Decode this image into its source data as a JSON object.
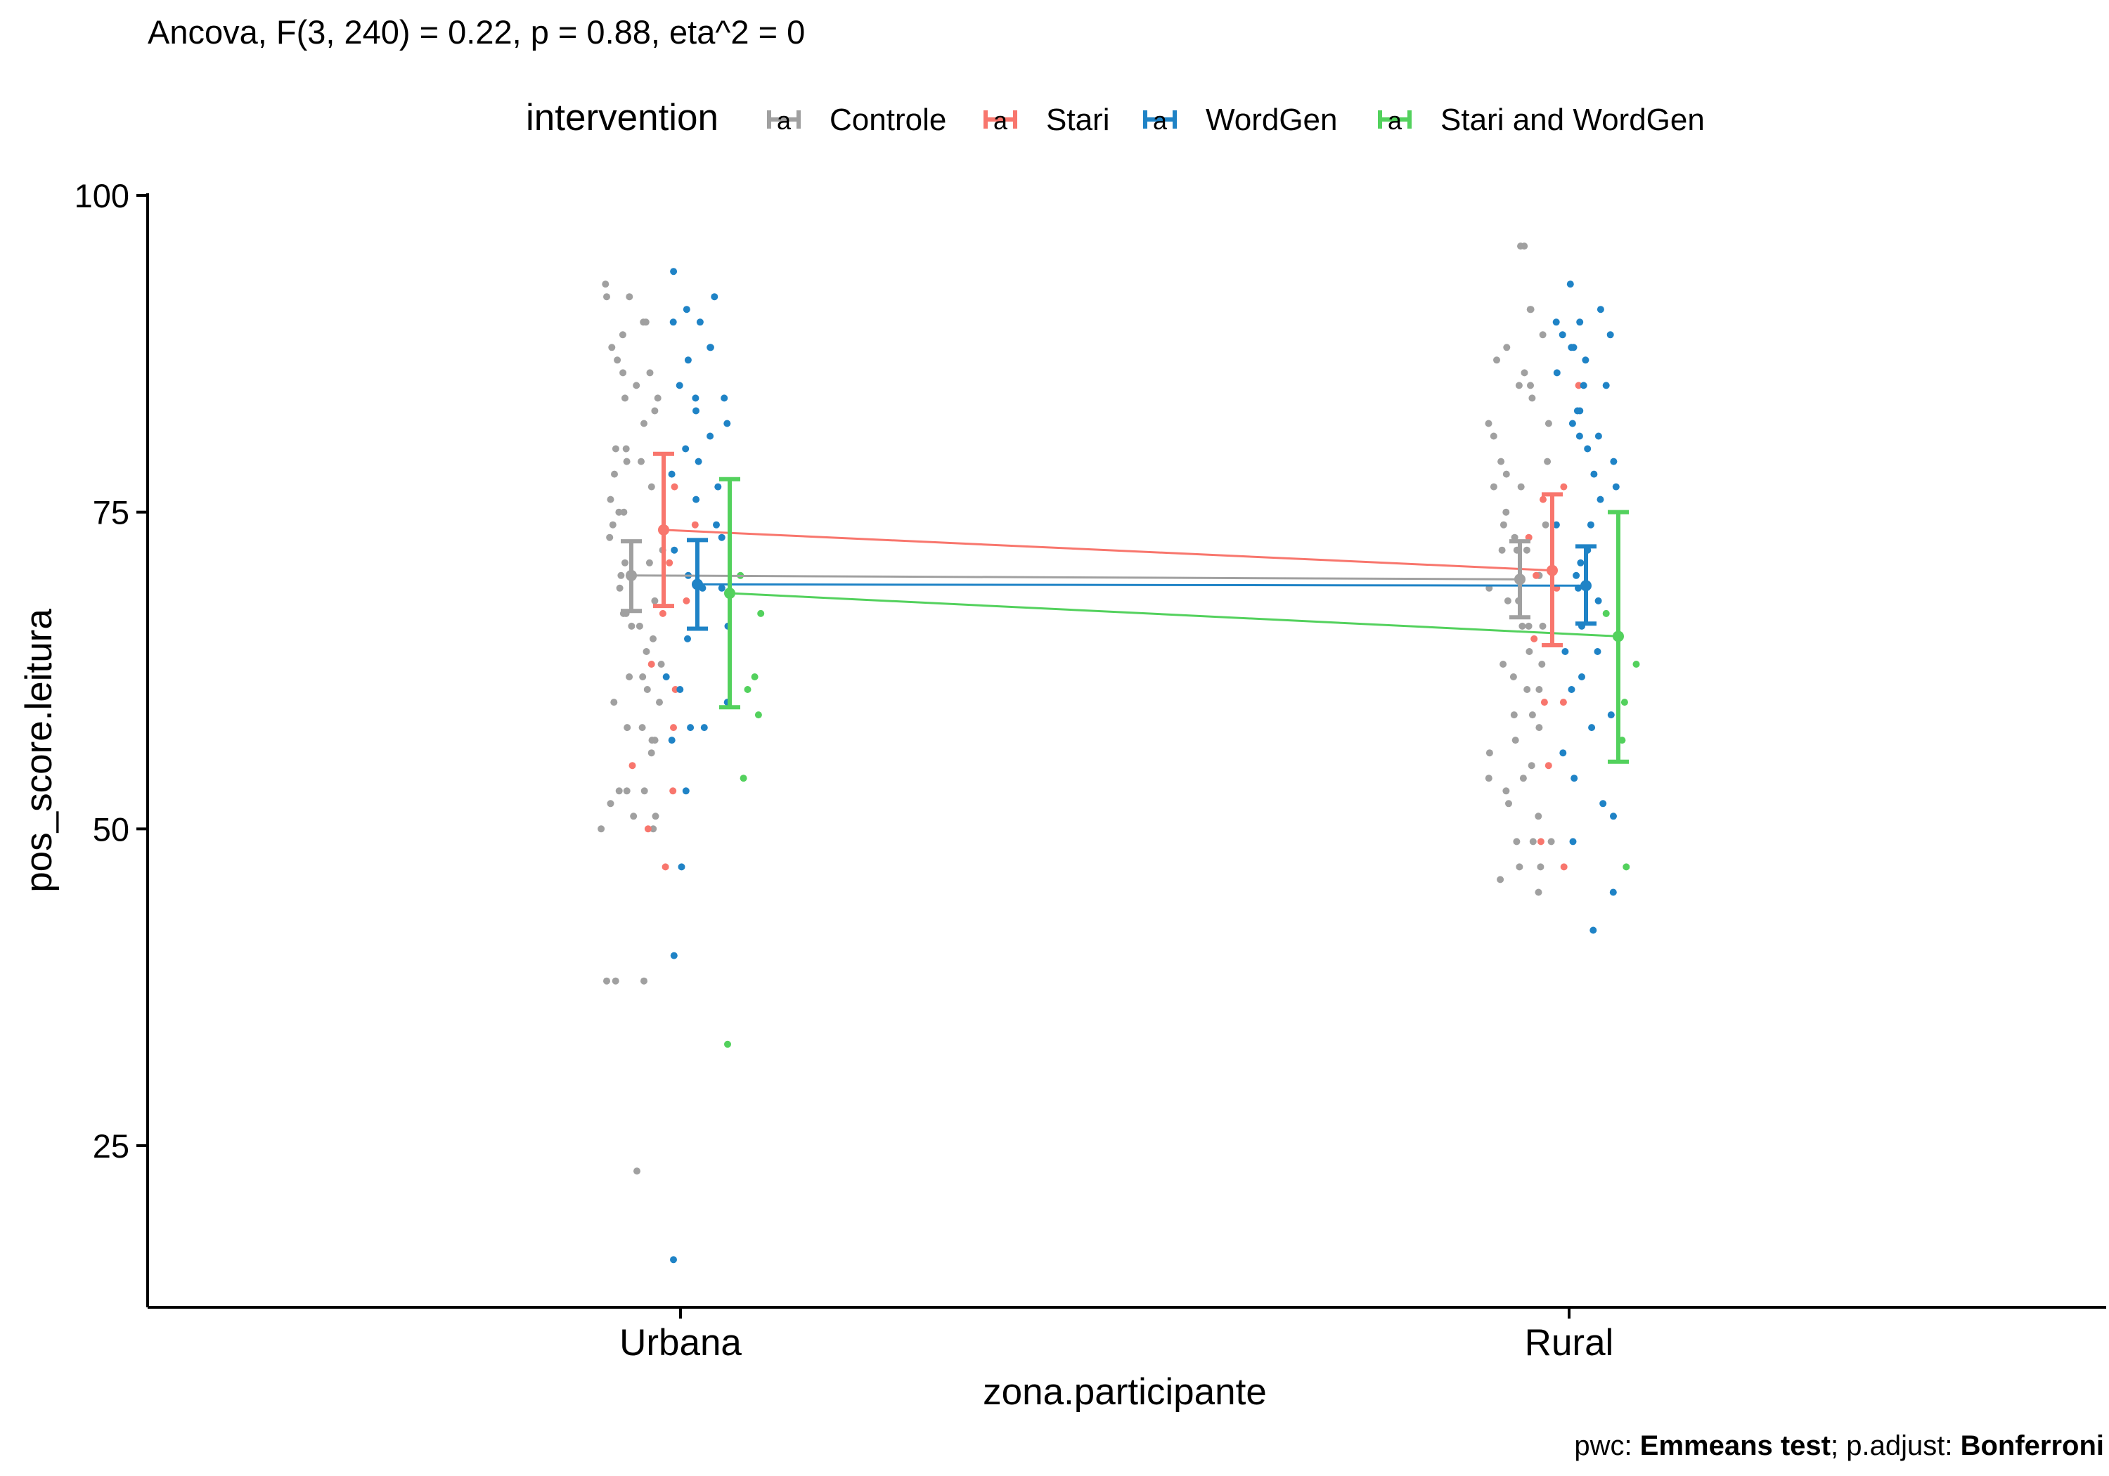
{
  "chart_data": {
    "type": "scatter",
    "title": "Ancova, F(3, 240) = 0.22, p = 0.88, eta^2 = 0",
    "xlabel": "zona.participante",
    "ylabel": "pos_score.leitura",
    "categories": [
      "Urbana",
      "Rural"
    ],
    "ylim": [
      12,
      100
    ],
    "yticks": [
      25,
      50,
      75,
      100
    ],
    "grid": false,
    "legend": {
      "title": "intervention",
      "placement": "top",
      "key_glyph": "a"
    },
    "caption": {
      "prefix": "pwc: ",
      "test": "Emmeans test",
      "middle": "; p.adjust: ",
      "adjust": "Bonferroni"
    },
    "series": [
      {
        "name": "Controle",
        "color": "#a0a0a0",
        "means": [
          70.0,
          69.7
        ],
        "ci_low": [
          67.2,
          66.7
        ],
        "ci_high": [
          72.7,
          72.7
        ],
        "points": [
          [
            0,
            79
          ],
          [
            0,
            75
          ],
          [
            0,
            66
          ],
          [
            0,
            72
          ],
          [
            0,
            62
          ],
          [
            0,
            58
          ],
          [
            0,
            52
          ],
          [
            0,
            51
          ],
          [
            0,
            53
          ],
          [
            0,
            57
          ],
          [
            0,
            64
          ],
          [
            0,
            70
          ],
          [
            0,
            86
          ],
          [
            0,
            88
          ],
          [
            0,
            85
          ],
          [
            0,
            78
          ],
          [
            0,
            74
          ],
          [
            0,
            71
          ],
          [
            0,
            68
          ],
          [
            0,
            65
          ],
          [
            0,
            92
          ],
          [
            0,
            92
          ],
          [
            0,
            90
          ],
          [
            0,
            89
          ],
          [
            0,
            87
          ],
          [
            0,
            86
          ],
          [
            0,
            84
          ],
          [
            0,
            83
          ],
          [
            0,
            80
          ],
          [
            0,
            79
          ],
          [
            0,
            77
          ],
          [
            0,
            76
          ],
          [
            0,
            73
          ],
          [
            0,
            69
          ],
          [
            0,
            67
          ],
          [
            0,
            66
          ],
          [
            0,
            63
          ],
          [
            0,
            62
          ],
          [
            0,
            61
          ],
          [
            0,
            60
          ],
          [
            0,
            58
          ],
          [
            0,
            57
          ],
          [
            0,
            56
          ],
          [
            0,
            53
          ],
          [
            0,
            51
          ],
          [
            0,
            50
          ],
          [
            0,
            38
          ],
          [
            0,
            38
          ],
          [
            0,
            23
          ],
          [
            0,
            93
          ],
          [
            0,
            90
          ],
          [
            0,
            84
          ],
          [
            0,
            82
          ],
          [
            0,
            80
          ],
          [
            0,
            75
          ],
          [
            0,
            71
          ],
          [
            0,
            67
          ],
          [
            0,
            60
          ],
          [
            0,
            53
          ],
          [
            0,
            50
          ],
          [
            0,
            38
          ],
          [
            1,
            87
          ],
          [
            1,
            85
          ],
          [
            1,
            82
          ],
          [
            1,
            78
          ],
          [
            1,
            75
          ],
          [
            1,
            73
          ],
          [
            1,
            72
          ],
          [
            1,
            70
          ],
          [
            1,
            68
          ],
          [
            1,
            66
          ],
          [
            1,
            63
          ],
          [
            1,
            61
          ],
          [
            1,
            59
          ],
          [
            1,
            56
          ],
          [
            1,
            54
          ],
          [
            1,
            49
          ],
          [
            1,
            96
          ],
          [
            1,
            91
          ],
          [
            1,
            88
          ],
          [
            1,
            85
          ],
          [
            1,
            82
          ],
          [
            1,
            79
          ],
          [
            1,
            77
          ],
          [
            1,
            74
          ],
          [
            1,
            72
          ],
          [
            1,
            69
          ],
          [
            1,
            66
          ],
          [
            1,
            64
          ],
          [
            1,
            62
          ],
          [
            1,
            58
          ],
          [
            1,
            55
          ],
          [
            1,
            53
          ],
          [
            1,
            51
          ],
          [
            1,
            49
          ],
          [
            1,
            47
          ],
          [
            1,
            46
          ],
          [
            1,
            96
          ],
          [
            1,
            91
          ],
          [
            1,
            89
          ],
          [
            1,
            86
          ],
          [
            1,
            84
          ],
          [
            1,
            81
          ],
          [
            1,
            79
          ],
          [
            1,
            77
          ],
          [
            1,
            74
          ],
          [
            1,
            72
          ],
          [
            1,
            70
          ],
          [
            1,
            68
          ],
          [
            1,
            66
          ],
          [
            1,
            63
          ],
          [
            1,
            61
          ],
          [
            1,
            59
          ],
          [
            1,
            57
          ],
          [
            1,
            54
          ],
          [
            1,
            52
          ],
          [
            1,
            49
          ],
          [
            1,
            47
          ],
          [
            1,
            45
          ]
        ]
      },
      {
        "name": "Stari",
        "color": "#f8766d",
        "means": [
          73.6,
          70.4
        ],
        "ci_low": [
          67.6,
          64.5
        ],
        "ci_high": [
          79.6,
          76.4
        ],
        "points": [
          [
            0,
            74
          ],
          [
            0,
            71
          ],
          [
            0,
            68
          ],
          [
            0,
            63
          ],
          [
            0,
            55
          ],
          [
            0,
            50
          ],
          [
            0,
            47
          ],
          [
            0,
            53
          ],
          [
            0,
            61
          ],
          [
            0,
            77
          ],
          [
            0,
            67
          ],
          [
            0,
            58
          ],
          [
            1,
            85
          ],
          [
            1,
            77
          ],
          [
            1,
            73
          ],
          [
            1,
            69
          ],
          [
            1,
            65
          ],
          [
            1,
            60
          ],
          [
            1,
            55
          ],
          [
            1,
            49
          ],
          [
            1,
            47
          ],
          [
            1,
            76
          ],
          [
            1,
            60
          ],
          [
            1,
            70
          ]
        ]
      },
      {
        "name": "WordGen",
        "color": "#1f83c6",
        "means": [
          69.3,
          69.2
        ],
        "ci_low": [
          65.8,
          66.2
        ],
        "ci_high": [
          72.8,
          72.3
        ],
        "points": [
          [
            0,
            91
          ],
          [
            0,
            90
          ],
          [
            0,
            90
          ],
          [
            0,
            82
          ],
          [
            0,
            81
          ],
          [
            0,
            79
          ],
          [
            0,
            77
          ],
          [
            0,
            74
          ],
          [
            0,
            53
          ],
          [
            0,
            83
          ],
          [
            0,
            76
          ],
          [
            0,
            72
          ],
          [
            0,
            69
          ],
          [
            0,
            65
          ],
          [
            0,
            62
          ],
          [
            0,
            58
          ],
          [
            0,
            58
          ],
          [
            0,
            57
          ],
          [
            0,
            40
          ],
          [
            0,
            16
          ],
          [
            0,
            94
          ],
          [
            0,
            92
          ],
          [
            0,
            88
          ],
          [
            0,
            88
          ],
          [
            0,
            87
          ],
          [
            0,
            85
          ],
          [
            0,
            84
          ],
          [
            0,
            84
          ],
          [
            0,
            80
          ],
          [
            0,
            78
          ],
          [
            0,
            73
          ],
          [
            0,
            70
          ],
          [
            0,
            66
          ],
          [
            0,
            61
          ],
          [
            0,
            47
          ],
          [
            0,
            69
          ],
          [
            0,
            60
          ],
          [
            1,
            93
          ],
          [
            1,
            91
          ],
          [
            1,
            88
          ],
          [
            1,
            85
          ],
          [
            1,
            82
          ],
          [
            1,
            80
          ],
          [
            1,
            76
          ],
          [
            1,
            72
          ],
          [
            1,
            68
          ],
          [
            1,
            64
          ],
          [
            1,
            61
          ],
          [
            1,
            56
          ],
          [
            1,
            52
          ],
          [
            1,
            90
          ],
          [
            1,
            89
          ],
          [
            1,
            87
          ],
          [
            1,
            85
          ],
          [
            1,
            83
          ],
          [
            1,
            81
          ],
          [
            1,
            78
          ],
          [
            1,
            74
          ],
          [
            1,
            70
          ],
          [
            1,
            66
          ],
          [
            1,
            62
          ],
          [
            1,
            58
          ],
          [
            1,
            54
          ],
          [
            1,
            51
          ],
          [
            1,
            45
          ],
          [
            1,
            42
          ],
          [
            1,
            90
          ],
          [
            1,
            89
          ],
          [
            1,
            88
          ],
          [
            1,
            86
          ],
          [
            1,
            83
          ],
          [
            1,
            81
          ],
          [
            1,
            79
          ],
          [
            1,
            77
          ],
          [
            1,
            74
          ],
          [
            1,
            71
          ],
          [
            1,
            69
          ],
          [
            1,
            64
          ],
          [
            1,
            59
          ],
          [
            1,
            49
          ]
        ]
      },
      {
        "name": "Stari and WordGen",
        "color": "#53d15d",
        "means": [
          68.6,
          65.2
        ],
        "ci_low": [
          59.6,
          55.3
        ],
        "ci_high": [
          77.6,
          75.0
        ],
        "points": [
          [
            0,
            59
          ],
          [
            0,
            54
          ],
          [
            0,
            67
          ],
          [
            0,
            61
          ],
          [
            0,
            33
          ],
          [
            0,
            70
          ],
          [
            0,
            62
          ],
          [
            1,
            67
          ],
          [
            1,
            63
          ],
          [
            1,
            60
          ],
          [
            1,
            47
          ],
          [
            1,
            57
          ]
        ]
      }
    ]
  }
}
